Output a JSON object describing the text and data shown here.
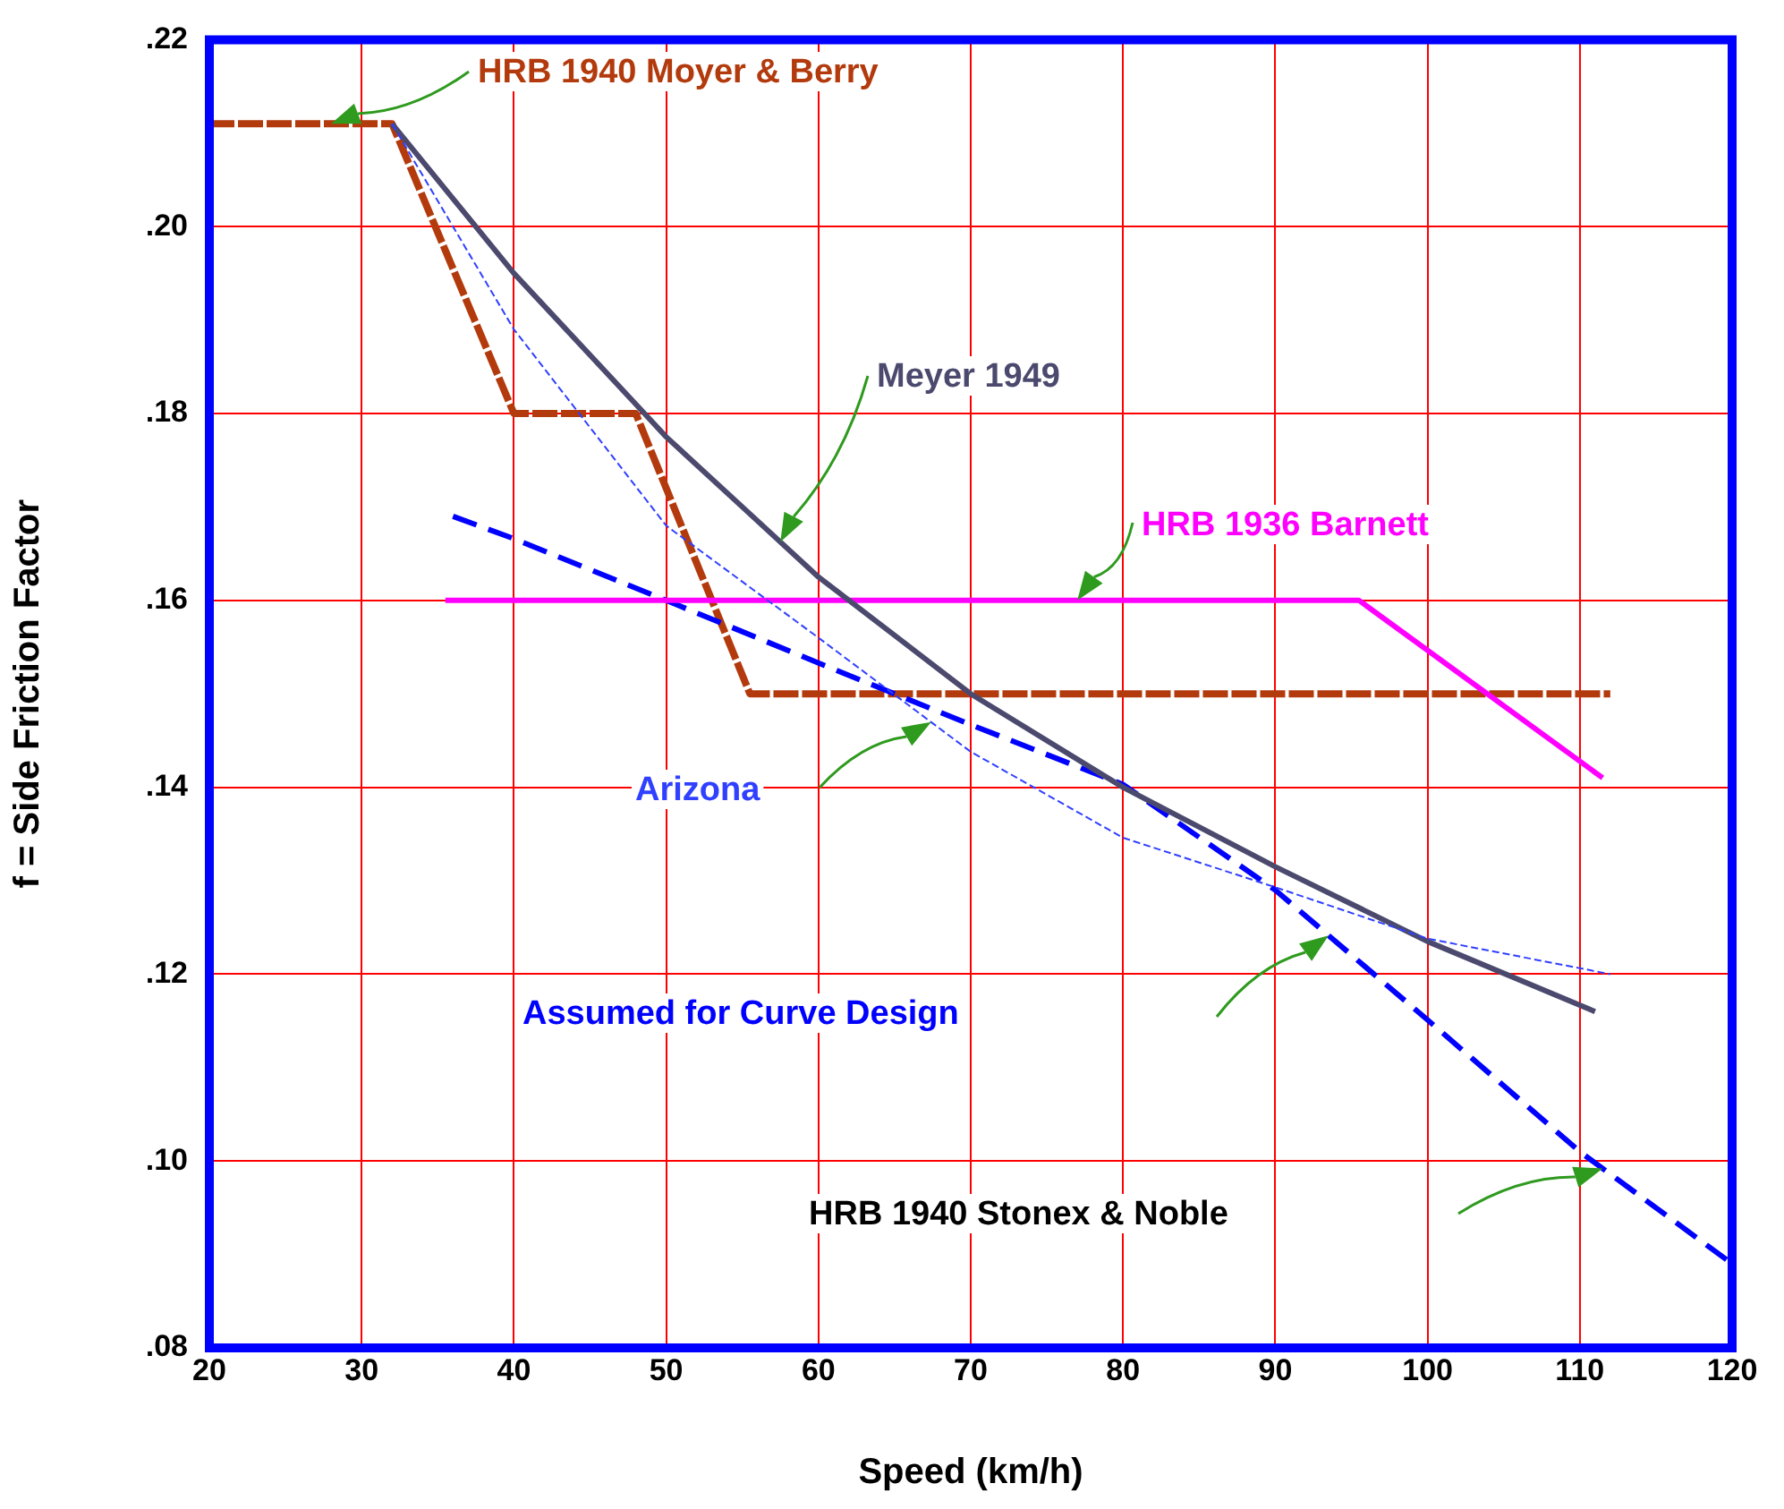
{
  "chart_data": {
    "type": "line",
    "xlabel": "Speed (km/h)",
    "ylabel": "f = Side Friction Factor",
    "xlim": [
      20,
      120
    ],
    "xticks": [
      20,
      30,
      40,
      50,
      60,
      70,
      80,
      90,
      100,
      110,
      120
    ],
    "ylim": [
      0.08,
      0.22
    ],
    "yticks": [
      {
        "value": 0.08,
        "label": ".08"
      },
      {
        "value": 0.1,
        "label": ".10"
      },
      {
        "value": 0.12,
        "label": ".12"
      },
      {
        "value": 0.14,
        "label": ".14"
      },
      {
        "value": 0.16,
        "label": ".16"
      },
      {
        "value": 0.18,
        "label": ".18"
      },
      {
        "value": 0.2,
        "label": ".20"
      },
      {
        "value": 0.22,
        "label": ".22"
      }
    ],
    "grid": true,
    "legend": false,
    "marker": "none",
    "series": [
      {
        "name": "HRB 1940 Moyer & Berry",
        "color": "#b33a0c",
        "line_style": "dashed",
        "x": [
          20,
          32,
          40,
          48,
          55.5,
          112
        ],
        "values": [
          0.211,
          0.211,
          0.18,
          0.18,
          0.15,
          0.15
        ]
      },
      {
        "name": "Meyer 1949",
        "color": "#4b4a6e",
        "line_style": "solid",
        "x": [
          32,
          40,
          48,
          50,
          55,
          60,
          70,
          80,
          90,
          100,
          111
        ],
        "values": [
          0.211,
          0.195,
          0.181,
          0.1775,
          0.17,
          0.1625,
          0.15,
          0.14,
          0.1315,
          0.1235,
          0.116
        ]
      },
      {
        "name": "HRB 1936 Barnett",
        "color": "#ff00ff",
        "line_style": "solid",
        "x": [
          35.5,
          95.5,
          111.5
        ],
        "values": [
          0.16,
          0.16,
          0.141
        ]
      },
      {
        "name": "Arizona",
        "color": "#3040ff",
        "line_style": "dashed",
        "x": [
          32,
          40,
          50,
          60,
          70,
          80,
          90,
          100,
          112
        ],
        "values": [
          0.211,
          0.189,
          0.168,
          0.156,
          0.1438,
          0.1346,
          0.1293,
          0.1238,
          0.12
        ]
      },
      {
        "name": "Assumed for Curve Design",
        "color": "#0000ff",
        "line_style": "dashed",
        "x": [
          36,
          40,
          50,
          60,
          70,
          80,
          90,
          100,
          110,
          120
        ],
        "values": [
          0.169,
          0.1666,
          0.16,
          0.1533,
          0.1467,
          0.1403,
          0.129,
          0.1151,
          0.101,
          0.089
        ]
      }
    ],
    "annotations": [
      "HRB 1940 Stonex & Noble"
    ]
  }
}
